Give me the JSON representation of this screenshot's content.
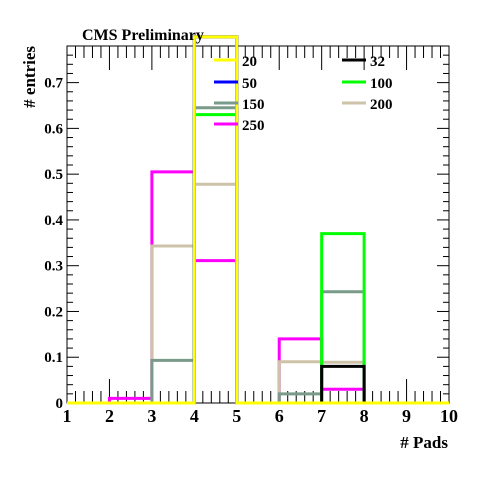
{
  "chart_data": {
    "type": "step",
    "title": "CMS Preliminary",
    "xlabel": "# Pads",
    "ylabel": "# entries",
    "xlim": [
      1,
      10
    ],
    "ylim": [
      0,
      0.78
    ],
    "xticks": [
      1,
      2,
      3,
      4,
      5,
      6,
      7,
      8,
      9,
      10
    ],
    "yticks": [
      0,
      0.1,
      0.2,
      0.3,
      0.4,
      0.5,
      0.6,
      0.7
    ],
    "ytick_labels": [
      "0",
      "0.1",
      "0.2",
      "0.3",
      "0.4",
      "0.5",
      "0.6",
      "0.7"
    ],
    "bin_edges": [
      1,
      2,
      3,
      4,
      5,
      6,
      7,
      8,
      9,
      10
    ],
    "legend_position": "top-right",
    "series": [
      {
        "name": "20",
        "color": "#ffff00",
        "values": [
          0,
          0,
          0,
          1.0,
          0,
          0,
          0,
          0,
          0
        ]
      },
      {
        "name": "32",
        "color": "#000000",
        "values": [
          0,
          0,
          0,
          0.92,
          0,
          0,
          0.08,
          0,
          0
        ]
      },
      {
        "name": "50",
        "color": "#0000ff",
        "values": [
          0,
          0,
          0,
          1.0,
          0,
          0,
          0,
          0,
          0
        ]
      },
      {
        "name": "100",
        "color": "#00ff00",
        "values": [
          0,
          0,
          0,
          0.63,
          0,
          0,
          0.37,
          0,
          0
        ]
      },
      {
        "name": "150",
        "color": "#7a9a8a",
        "values": [
          0,
          0,
          0.093,
          0.645,
          0,
          0.02,
          0.243,
          0,
          0
        ]
      },
      {
        "name": "200",
        "color": "#cdc3a8",
        "values": [
          0,
          0,
          0.343,
          0.478,
          0,
          0.09,
          0.089,
          0,
          0
        ]
      },
      {
        "name": "250",
        "color": "#ff00ff",
        "values": [
          0,
          0.01,
          0.505,
          0.311,
          0,
          0.14,
          0.03,
          0,
          0
        ]
      }
    ],
    "draw_order": [
      6,
      5,
      4,
      3,
      1,
      2,
      0
    ]
  }
}
